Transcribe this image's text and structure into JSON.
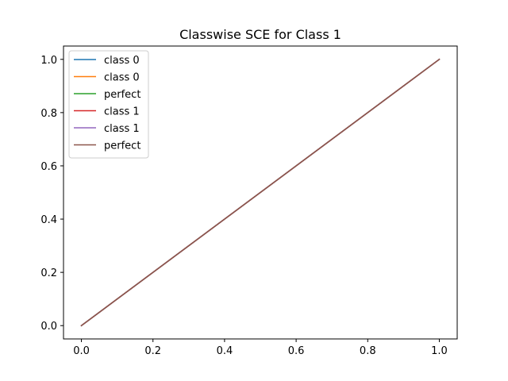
{
  "chart_data": {
    "type": "line",
    "title": "Classwise SCE for Class 1",
    "xlabel": "",
    "ylabel": "",
    "xlim": [
      -0.05,
      1.05
    ],
    "ylim": [
      -0.05,
      1.05
    ],
    "xticks": [
      0.0,
      0.2,
      0.4,
      0.6,
      0.8,
      1.0
    ],
    "yticks": [
      0.0,
      0.2,
      0.4,
      0.6,
      0.8,
      1.0
    ],
    "xtick_labels": [
      "0.0",
      "0.2",
      "0.4",
      "0.6",
      "0.8",
      "1.0"
    ],
    "ytick_labels": [
      "0.0",
      "0.2",
      "0.4",
      "0.6",
      "0.8",
      "1.0"
    ],
    "grid": false,
    "legend_position": "top-left",
    "series": [
      {
        "name": "class 0",
        "color": "#1f77b4",
        "x": [
          0,
          1
        ],
        "y": [
          0,
          1
        ]
      },
      {
        "name": "class 0",
        "color": "#ff7f0e",
        "x": [
          0,
          1
        ],
        "y": [
          0,
          1
        ]
      },
      {
        "name": "perfect",
        "color": "#2ca02c",
        "x": [
          0,
          1
        ],
        "y": [
          0,
          1
        ]
      },
      {
        "name": "class 1",
        "color": "#d62728",
        "x": [
          0,
          1
        ],
        "y": [
          0,
          1
        ]
      },
      {
        "name": "class 1",
        "color": "#9467bd",
        "x": [
          0,
          1
        ],
        "y": [
          0,
          1
        ]
      },
      {
        "name": "perfect",
        "color": "#8c564b",
        "x": [
          0,
          1
        ],
        "y": [
          0,
          1
        ]
      }
    ]
  }
}
